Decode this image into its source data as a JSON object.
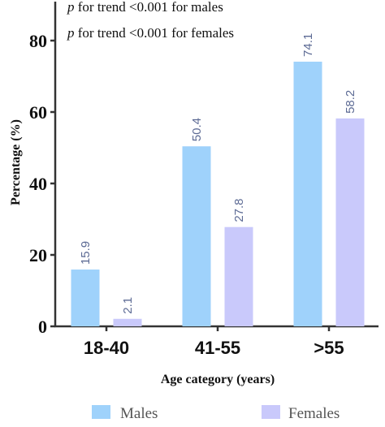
{
  "chart_data": {
    "type": "bar",
    "categories": [
      "18-40",
      "41-55",
      ">55"
    ],
    "series": [
      {
        "name": "Males",
        "values": [
          15.9,
          50.4,
          74.1
        ],
        "color": "#9fd2fb"
      },
      {
        "name": "Females",
        "values": [
          2.1,
          27.8,
          58.2
        ],
        "color": "#c9c9fb"
      }
    ],
    "xlabel": "Age category (years)",
    "ylabel": "Percentage (%)",
    "ylim": [
      0,
      80
    ],
    "yticks": [
      0,
      20,
      40,
      60,
      80
    ],
    "annotations": [
      {
        "p": "p",
        "text": " for trend <0.001 for males"
      },
      {
        "p": "p",
        "text": " for trend <0.001 for females"
      }
    ],
    "legend_position": "bottom",
    "grid": false
  }
}
